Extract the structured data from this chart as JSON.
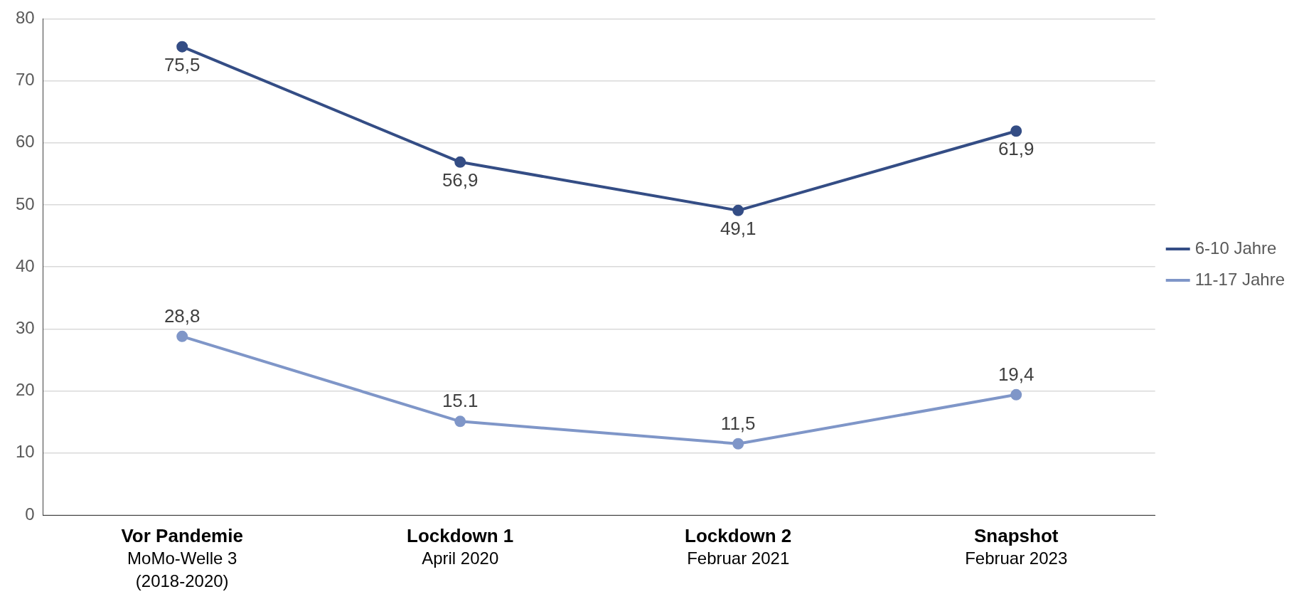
{
  "chart_data": {
    "type": "line",
    "categories": [
      "Vor Pandemie\nMoMo-Welle 3\n(2018-2020)",
      "Lockdown 1\nApril 2020",
      "Lockdown 2\nFebruar 2021",
      "Snapshot\nFebruar 2023"
    ],
    "series": [
      {
        "name": "6-10 Jahre",
        "color": "#344d85",
        "values": [
          75.5,
          56.9,
          49.1,
          61.9
        ],
        "value_labels": [
          "75,5",
          "56,9",
          "49,1",
          "61,9"
        ]
      },
      {
        "name": "11-17 Jahre",
        "color": "#7f96c8",
        "values": [
          28.8,
          15.1,
          11.5,
          19.4
        ],
        "value_labels": [
          "28,8",
          "15.1",
          "11,5",
          "19,4"
        ]
      }
    ],
    "ylim": [
      0,
      80
    ],
    "yticks": [
      0,
      10,
      20,
      30,
      40,
      50,
      60,
      70,
      80
    ],
    "grid": "y",
    "legend": "right",
    "marker": "circle",
    "line_style": "solid"
  }
}
